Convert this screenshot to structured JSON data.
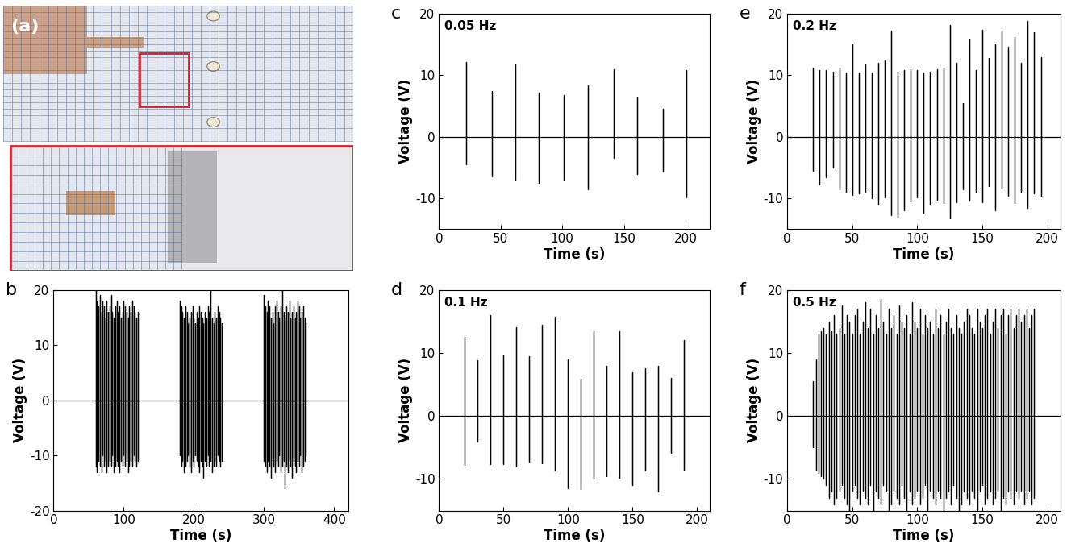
{
  "photo": {
    "label": "(a)"
  },
  "chart_data": [
    {
      "type": "line",
      "panel_label": "b",
      "color": "#000000",
      "x_label": "Time (s)",
      "y_label": "Voltage (V)",
      "xlim": [
        0,
        420
      ],
      "xticks": [
        0,
        100,
        200,
        300,
        400
      ],
      "ylim": [
        -20,
        20
      ],
      "yticks": [
        -20,
        -10,
        0,
        10,
        20
      ],
      "x": [
        60,
        62,
        64,
        66,
        68,
        70,
        72,
        74,
        76,
        78,
        80,
        82,
        84,
        86,
        88,
        90,
        92,
        94,
        96,
        98,
        100,
        102,
        104,
        106,
        108,
        110,
        112,
        114,
        116,
        118,
        120,
        180,
        182,
        184,
        186,
        188,
        190,
        192,
        194,
        196,
        198,
        200,
        202,
        204,
        206,
        208,
        210,
        212,
        214,
        216,
        218,
        220,
        222,
        224,
        226,
        228,
        230,
        232,
        234,
        236,
        238,
        240,
        300,
        302,
        304,
        306,
        308,
        310,
        312,
        314,
        316,
        318,
        320,
        322,
        324,
        326,
        328,
        330,
        332,
        334,
        336,
        338,
        340,
        342,
        344,
        346,
        348,
        350,
        352,
        354,
        356,
        358,
        360
      ],
      "positive_peaks": [
        20,
        18,
        17,
        19,
        16,
        18,
        17,
        15,
        18,
        16,
        17,
        19,
        16,
        15,
        17,
        18,
        16,
        17,
        15,
        16,
        18,
        17,
        16,
        15,
        17,
        16,
        18,
        17,
        16,
        15,
        16,
        18,
        17,
        16,
        15,
        17,
        16,
        14,
        15,
        16,
        17,
        15,
        14,
        16,
        15,
        17,
        16,
        15,
        14,
        16,
        15,
        17,
        16,
        20,
        15,
        14,
        16,
        15,
        17,
        16,
        15,
        14,
        19,
        17,
        16,
        18,
        17,
        15,
        16,
        14,
        17,
        18,
        16,
        15,
        17,
        20,
        16,
        15,
        17,
        16,
        18,
        15,
        16,
        17,
        15,
        16,
        18,
        17,
        15,
        16,
        17,
        15,
        14
      ],
      "negative_peaks": [
        -12,
        -13,
        -11,
        -12,
        -13,
        -10,
        -12,
        -11,
        -13,
        -12,
        -11,
        -12,
        -10,
        -13,
        -12,
        -11,
        -12,
        -13,
        -11,
        -12,
        -10,
        -12,
        -11,
        -13,
        -12,
        -11,
        -12,
        -10,
        -11,
        -12,
        -11,
        -10,
        -12,
        -11,
        -13,
        -12,
        -11,
        -10,
        -12,
        -13,
        -11,
        -12,
        -10,
        -11,
        -12,
        -13,
        -11,
        -12,
        -14,
        -11,
        -12,
        -10,
        -12,
        -11,
        -13,
        -12,
        -11,
        -12,
        -10,
        -11,
        -12,
        -11,
        -11,
        -12,
        -13,
        -11,
        -12,
        -14,
        -11,
        -12,
        -13,
        -11,
        -12,
        -10,
        -13,
        -12,
        -11,
        -16,
        -12,
        -13,
        -11,
        -12,
        -14,
        -11,
        -12,
        -13,
        -11,
        -12,
        -10,
        -13,
        -12,
        -11,
        -10
      ]
    },
    {
      "type": "line",
      "panel_label": "c",
      "annotation": "0.05 Hz",
      "color": "#000000",
      "x_label": "Time (s)",
      "y_label": "Voltage (V)",
      "xlim": [
        0,
        220
      ],
      "xticks": [
        0,
        50,
        100,
        150,
        200
      ],
      "ylim": [
        -15,
        20
      ],
      "yticks": [
        -10,
        0,
        10,
        20
      ],
      "x": [
        22,
        43,
        62,
        81,
        101,
        121,
        142,
        161,
        182,
        201
      ],
      "positive_peaks": [
        12.2,
        7.5,
        11.8,
        7.2,
        6.8,
        8.4,
        11.0,
        6.5,
        4.5,
        10.9
      ],
      "negative_peaks": [
        -4.5,
        -6.5,
        -7.0,
        -7.5,
        -7.0,
        -8.6,
        -3.4,
        -6.0,
        -5.7,
        -9.8
      ]
    },
    {
      "type": "line",
      "panel_label": "d",
      "annotation": "0.1 Hz",
      "color": "#000000",
      "x_label": "Time (s)",
      "y_label": "Voltage (V)",
      "xlim": [
        0,
        210
      ],
      "xticks": [
        0,
        50,
        100,
        150,
        200
      ],
      "ylim": [
        -15,
        20
      ],
      "yticks": [
        -10,
        0,
        10,
        20
      ],
      "x": [
        20,
        30,
        40,
        50,
        60,
        70,
        80,
        90,
        100,
        110,
        120,
        130,
        140,
        150,
        160,
        170,
        180,
        190
      ],
      "positive_peaks": [
        12.5,
        8.8,
        16.0,
        9.7,
        14.1,
        9.5,
        14.5,
        15.7,
        9.0,
        5.9,
        13.4,
        7.9,
        13.5,
        6.9,
        7.6,
        7.9,
        6.0,
        12.0
      ],
      "negative_peaks": [
        -7.8,
        -4.0,
        -7.6,
        -7.6,
        -8.0,
        -7.3,
        -7.5,
        -8.6,
        -11.5,
        -11.6,
        -10.0,
        -9.6,
        -9.8,
        -11.0,
        -8.7,
        -12.0,
        -5.8,
        -8.5
      ]
    },
    {
      "type": "line",
      "panel_label": "e",
      "annotation": "0.2 Hz",
      "color": "#000000",
      "x_label": "Time (s)",
      "y_label": "Voltage (V)",
      "xlim": [
        0,
        210
      ],
      "xticks": [
        0,
        50,
        100,
        150,
        200
      ],
      "ylim": [
        -15,
        20
      ],
      "yticks": [
        -10,
        0,
        10,
        20
      ],
      "x": [
        20,
        25,
        30,
        35,
        40,
        45,
        50,
        55,
        60,
        65,
        70,
        75,
        80,
        85,
        90,
        95,
        100,
        105,
        110,
        115,
        120,
        125,
        130,
        135,
        140,
        145,
        150,
        155,
        160,
        165,
        170,
        175,
        180,
        185,
        190,
        195
      ],
      "positive_peaks": [
        11.3,
        10.8,
        10.8,
        10.6,
        11.3,
        10.4,
        15.0,
        10.5,
        11.8,
        10.4,
        12.0,
        12.4,
        17.2,
        10.6,
        10.8,
        11.0,
        10.9,
        10.4,
        10.6,
        11.0,
        11.2,
        18.2,
        12.0,
        5.5,
        16.0,
        10.8,
        17.4,
        12.8,
        15.0,
        17.2,
        14.6,
        16.2,
        12.0,
        18.8,
        17.0,
        13.0
      ],
      "negative_peaks": [
        -5.5,
        -7.8,
        -6.6,
        -5.0,
        -8.5,
        -9.0,
        -9.5,
        -9.2,
        -9.0,
        -10.0,
        -11.0,
        -9.8,
        -12.8,
        -13.0,
        -12.0,
        -10.5,
        -9.8,
        -12.4,
        -11.0,
        -10.2,
        -10.8,
        -13.2,
        -10.6,
        -8.6,
        -10.4,
        -9.0,
        -10.6,
        -8.0,
        -12.0,
        -8.4,
        -9.6,
        -10.8,
        -9.0,
        -11.5,
        -9.2,
        -9.6
      ]
    },
    {
      "type": "line",
      "panel_label": "f",
      "annotation": "0.5 Hz",
      "color": "#000000",
      "x_label": "Time (s)",
      "y_label": "Voltage (V)",
      "xlim": [
        0,
        210
      ],
      "xticks": [
        0,
        50,
        100,
        150,
        200
      ],
      "ylim": [
        -15,
        20
      ],
      "yticks": [
        -10,
        0,
        10,
        20
      ],
      "x": [
        20,
        22,
        24,
        26,
        28,
        30,
        32,
        34,
        36,
        38,
        40,
        42,
        44,
        46,
        48,
        50,
        52,
        54,
        56,
        58,
        60,
        62,
        64,
        66,
        68,
        70,
        72,
        74,
        76,
        78,
        80,
        82,
        84,
        86,
        88,
        90,
        92,
        94,
        96,
        98,
        100,
        102,
        104,
        106,
        108,
        110,
        112,
        114,
        116,
        118,
        120,
        122,
        124,
        126,
        128,
        130,
        132,
        134,
        136,
        138,
        140,
        142,
        144,
        146,
        148,
        150,
        152,
        154,
        156,
        158,
        160,
        162,
        164,
        166,
        168,
        170,
        172,
        174,
        176,
        178,
        180,
        182,
        184,
        186,
        188,
        190
      ],
      "positive_peaks": [
        5.5,
        9,
        13,
        13.5,
        14,
        13,
        15,
        13.5,
        16,
        13,
        14,
        17.5,
        13,
        16,
        15,
        13,
        16,
        17,
        13,
        15,
        18,
        14,
        17,
        13,
        16,
        14,
        18.5,
        15,
        13,
        17,
        14,
        16,
        13,
        17.5,
        15,
        14,
        16,
        13,
        18,
        15,
        14,
        17,
        13,
        16,
        14,
        15,
        13,
        17,
        14,
        16,
        13,
        15,
        17,
        14,
        13,
        16,
        14,
        13,
        15,
        17,
        16,
        14,
        13,
        17,
        15,
        14,
        16,
        17,
        13,
        15,
        17,
        14,
        16,
        17,
        13,
        16,
        17,
        14,
        16,
        17,
        15,
        16,
        17,
        14,
        16,
        17
      ],
      "negative_peaks": [
        -5,
        -8.5,
        -9,
        -9.5,
        -10,
        -11,
        -13,
        -12,
        -14,
        -13,
        -12,
        -11,
        -13,
        -14,
        -15,
        -12,
        -11,
        -13,
        -14,
        -12,
        -13,
        -14,
        -11,
        -15,
        -12,
        -13,
        -14,
        -11,
        -12,
        -15,
        -14,
        -12,
        -13,
        -14,
        -11,
        -13,
        -15,
        -12,
        -14,
        -13,
        -12,
        -14,
        -13,
        -11,
        -15,
        -12,
        -13,
        -14,
        -12,
        -13,
        -15,
        -13,
        -12,
        -14,
        -11,
        -13,
        -15,
        -14,
        -12,
        -13,
        -14,
        -12,
        -13,
        -15,
        -12,
        -11,
        -14,
        -13,
        -12,
        -14,
        -13,
        -12,
        -15,
        -13,
        -14,
        -12,
        -13,
        -14,
        -12,
        -13,
        -12,
        -14,
        -13,
        -12,
        -14,
        -13
      ]
    }
  ]
}
